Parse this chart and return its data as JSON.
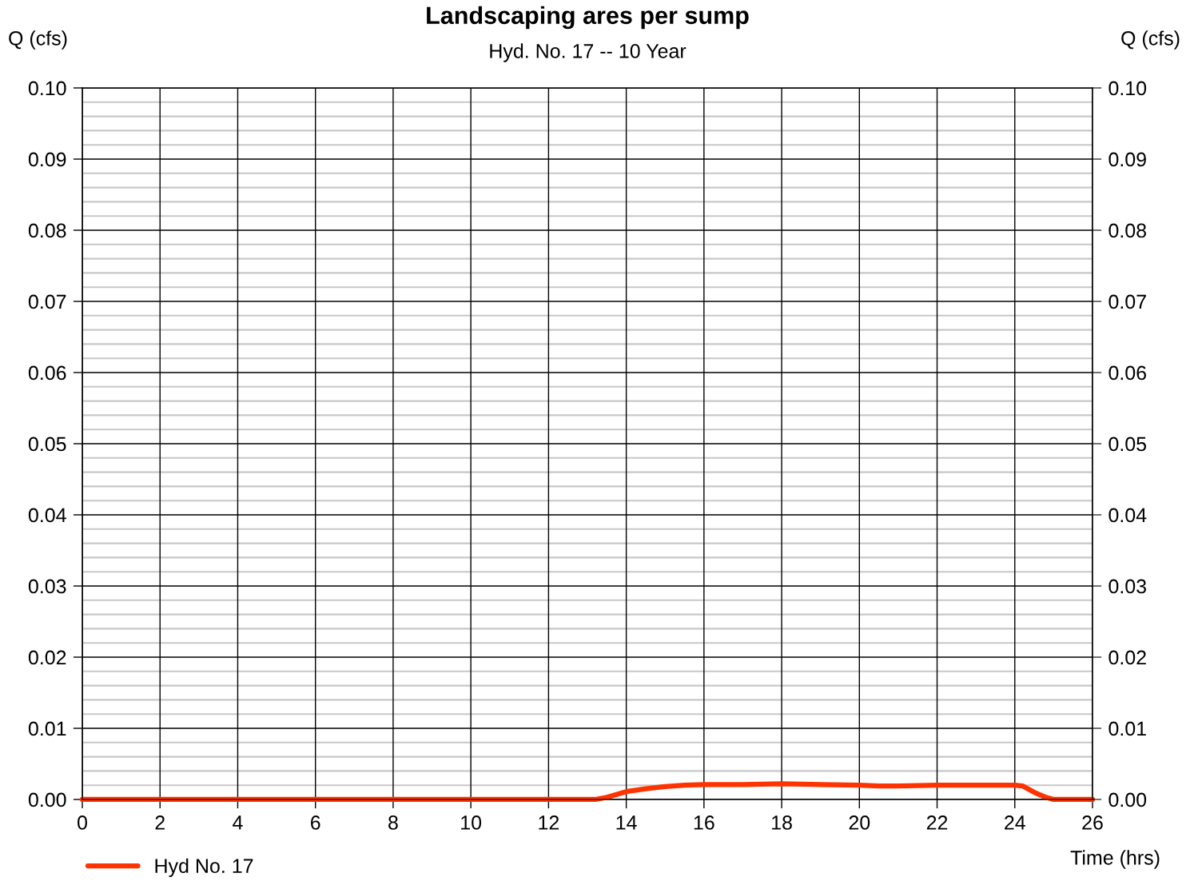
{
  "chart_data": {
    "type": "line",
    "title": "Landscaping ares per sump",
    "subtitle": "Hyd. No. 17 -- 10 Year",
    "xlabel": "Time (hrs)",
    "ylabel": "Q (cfs)",
    "y2label": "Q (cfs)",
    "xlim": [
      0,
      26
    ],
    "xticks": [
      0,
      2,
      4,
      6,
      8,
      10,
      12,
      14,
      16,
      18,
      20,
      22,
      24,
      26
    ],
    "ylim": [
      0,
      0.1
    ],
    "yticks": [
      {
        "value": 0,
        "label": "0.00"
      },
      {
        "value": 0.01,
        "label": "0.01"
      },
      {
        "value": 0.02,
        "label": "0.02"
      },
      {
        "value": 0.03,
        "label": "0.03"
      },
      {
        "value": 0.04,
        "label": "0.04"
      },
      {
        "value": 0.05,
        "label": "0.05"
      },
      {
        "value": 0.06,
        "label": "0.06"
      },
      {
        "value": 0.07,
        "label": "0.07"
      },
      {
        "value": 0.08,
        "label": "0.08"
      },
      {
        "value": 0.09,
        "label": "0.09"
      },
      {
        "value": 0.1,
        "label": "0.10"
      }
    ],
    "y2lim": [
      0,
      0.1
    ],
    "y2ticks": [
      {
        "value": 0,
        "label": "0.00"
      },
      {
        "value": 0.01,
        "label": "0.01"
      },
      {
        "value": 0.02,
        "label": "0.02"
      },
      {
        "value": 0.03,
        "label": "0.03"
      },
      {
        "value": 0.04,
        "label": "0.04"
      },
      {
        "value": 0.05,
        "label": "0.05"
      },
      {
        "value": 0.06,
        "label": "0.06"
      },
      {
        "value": 0.07,
        "label": "0.07"
      },
      {
        "value": 0.08,
        "label": "0.08"
      },
      {
        "value": 0.09,
        "label": "0.09"
      },
      {
        "value": 0.1,
        "label": "0.10"
      }
    ],
    "grid": true,
    "legend": "bottom left",
    "marker": "none",
    "line_style": "solid",
    "x": [
      0,
      13.2,
      13.5,
      14,
      14.5,
      15,
      15.5,
      16,
      17,
      18,
      19,
      20,
      20.5,
      21,
      22,
      23,
      24,
      24.2,
      24.5,
      24.8,
      25,
      26
    ],
    "series": [
      {
        "name": "Hyd No. 17",
        "color": "#ff3300",
        "values": [
          0,
          0,
          0.0003,
          0.0011,
          0.0015,
          0.0018,
          0.002,
          0.0021,
          0.0021,
          0.0022,
          0.0021,
          0.002,
          0.0019,
          0.0019,
          0.002,
          0.002,
          0.002,
          0.0019,
          0.001,
          0.0003,
          0,
          0
        ]
      }
    ]
  }
}
